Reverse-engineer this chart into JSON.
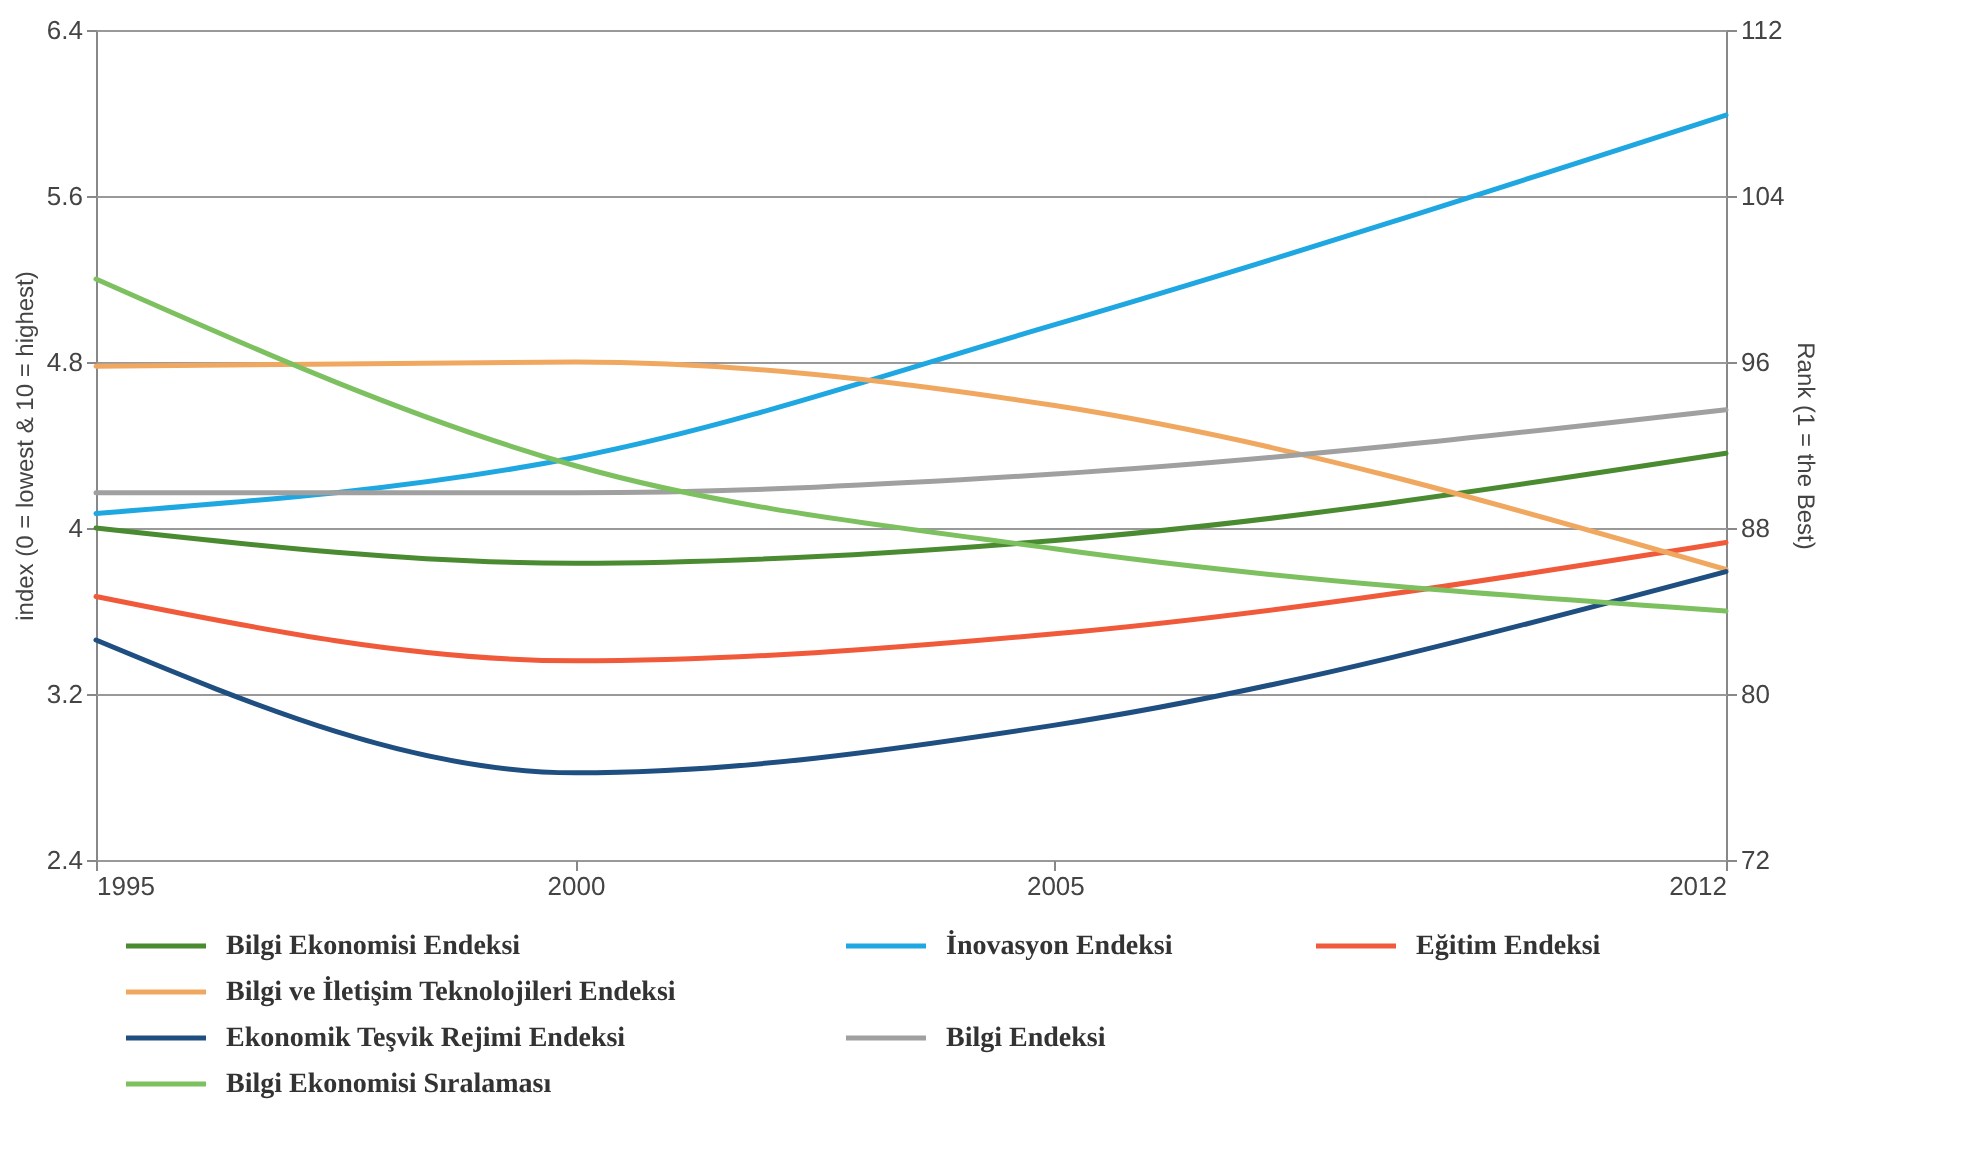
{
  "chart_data": {
    "type": "line",
    "x": [
      1995,
      2000,
      2005,
      2012
    ],
    "xlim": [
      1995,
      2012
    ],
    "xticks": [
      1995,
      2000,
      2005,
      2012
    ],
    "ylim": [
      2.4,
      6.4
    ],
    "yticks": [
      2.4,
      3.2,
      4,
      4.8,
      5.6,
      6.4
    ],
    "y2lim": [
      72,
      112
    ],
    "y2ticks": [
      72,
      80,
      88,
      96,
      104,
      112
    ],
    "ylabel": "index (0 = lowest & 10 = highest)",
    "y2label": "Rank (1 = the Best)",
    "grid": "y",
    "legend": "bottom",
    "series": [
      {
        "name": "Bilgi Ekonomisi Endeksi",
        "color": "#4a8a30",
        "values": [
          4.0,
          3.83,
          3.94,
          4.36
        ]
      },
      {
        "name": "İnovasyon Endeksi",
        "color": "#1ea7e0",
        "values": [
          4.07,
          4.34,
          4.98,
          5.99
        ]
      },
      {
        "name": "Eğitim Endeksi",
        "color": "#f05a3a",
        "values": [
          3.67,
          3.36,
          3.49,
          3.93
        ]
      },
      {
        "name": "Bilgi ve İletişim Teknolojileri Endeksi",
        "color": "#f0a860",
        "values": [
          4.78,
          4.8,
          4.59,
          3.8
        ]
      },
      {
        "name": "Ekonomik Teşvik Rejimi Endeksi",
        "color": "#1f4e80",
        "values": [
          3.46,
          2.82,
          3.05,
          3.79
        ]
      },
      {
        "name": "Bilgi Endeksi",
        "color": "#a0a0a0",
        "values": [
          4.17,
          4.17,
          4.26,
          4.57
        ]
      },
      {
        "name": "Bilgi Ekonomisi Sıralaması",
        "color": "#7dc060",
        "values": [
          100,
          91,
          87,
          84
        ],
        "axis": "y2"
      }
    ]
  }
}
